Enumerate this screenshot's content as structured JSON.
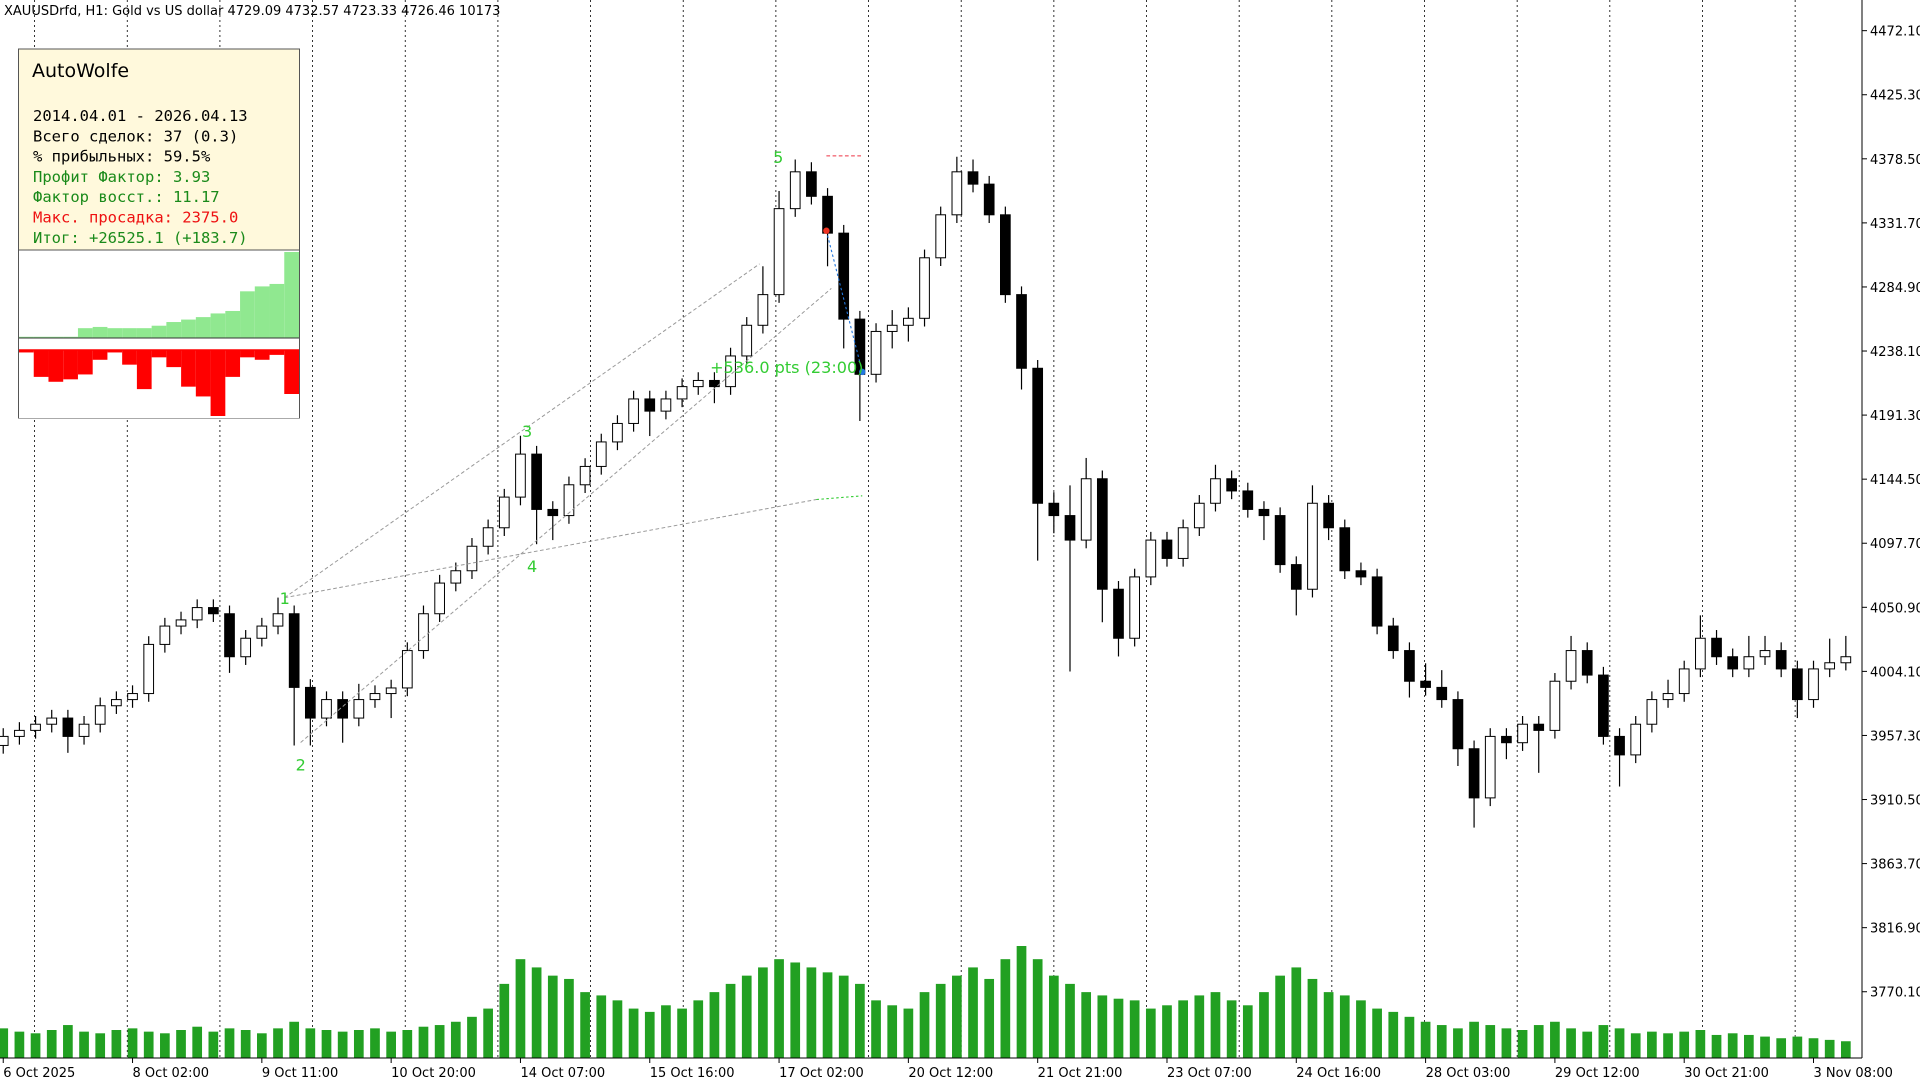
{
  "header": {
    "symbol_line": "XAUUSDrfd, H1:  Gold vs US dollar  4729.09 4732.57 4723.33 4726.46  10173"
  },
  "panel": {
    "title": "AutoWolfe",
    "lines": [
      {
        "text": "2014.04.01 - 2026.04.13",
        "color": "#000000"
      },
      {
        "text": "Всего сделок: 37 (0.3)",
        "color": "#000000"
      },
      {
        "text": "% прибыльных: 59.5%",
        "color": "#000000"
      },
      {
        "text": "Профит Фактор: 3.93",
        "color": "#1a8a1a"
      },
      {
        "text": "Фактор восст.: 11.17",
        "color": "#1a8a1a"
      },
      {
        "text": "Макс. просадка: 2375.0",
        "color": "#ee1111"
      },
      {
        "text": "Итог: +26525.1 (+183.7)",
        "color": "#1a8a1a"
      }
    ],
    "equity": [
      1,
      1,
      1,
      1,
      8,
      9,
      8,
      8,
      8,
      10,
      13,
      15,
      17,
      20,
      22,
      38,
      42,
      44,
      70
    ],
    "equity_color": "#90e890",
    "drawdown": [
      2,
      22,
      26,
      24,
      20,
      8,
      2,
      12,
      32,
      6,
      14,
      30,
      38,
      54,
      22,
      6,
      8,
      4,
      36
    ],
    "drawdown_color": "#ff0000"
  },
  "overlay": {
    "wolfe_labels": [
      "1",
      "2",
      "3",
      "4",
      "5"
    ],
    "pts_label": "+536.0 pts (23:00)",
    "color": "#33cc33"
  },
  "chart_data": {
    "type": "candlestick",
    "open": [
      3950.0,
      3956.6,
      3961.0,
      3965.5,
      3970.0,
      3956.6,
      3965.5,
      3979.0,
      3983.5,
      3987.9,
      4023.8,
      4037.2,
      4041.7,
      4050.7,
      4046.2,
      4014.8,
      4028.3,
      4037.2,
      4046.2,
      3992.4,
      3970.0,
      3983.5,
      3970.0,
      3983.5,
      3987.9,
      3992.0,
      4019.3,
      4046.2,
      4068.6,
      4077.6,
      4095.5,
      4109.0,
      4131.4,
      4162.8,
      4122.4,
      4117.9,
      4140.4,
      4153.8,
      4171.7,
      4185.2,
      4203.1,
      4194.2,
      4203.1,
      4212.1,
      4216.6,
      4212.1,
      4234.5,
      4256.9,
      4279.3,
      4342.1,
      4369.0,
      4351.1,
      4324.2,
      4261.4,
      4221.1,
      4252.4,
      4256.9,
      4262.0,
      4306.2,
      4337.6,
      4369.0,
      4360.0,
      4337.6,
      4279.3,
      4225.5,
      4126.9,
      4117.9,
      4100.0,
      4144.8,
      4064.1,
      4028.3,
      4073.1,
      4100.0,
      4086.6,
      4109.0,
      4126.9,
      4144.8,
      4135.9,
      4122.4,
      4117.9,
      4082.1,
      4064.1,
      4126.9,
      4109.0,
      4077.6,
      4073.1,
      4037.2,
      4019.3,
      3996.9,
      3992.4,
      3983.5,
      3947.6,
      3911.7,
      3956.6,
      3952.0,
      3965.5,
      3961.0,
      3996.9,
      4019.3,
      4001.4,
      3956.6,
      3943.1,
      3965.5,
      3983.5,
      3987.9,
      4005.9,
      4028.3,
      4014.8,
      4005.9,
      4014.8,
      4019.3,
      4005.9,
      3983.5,
      4005.9,
      4010.4
    ],
    "high": [
      3962.6,
      3967.0,
      3971.5,
      3976.0,
      3976.0,
      3971.5,
      3985.0,
      3989.5,
      3993.9,
      4029.8,
      4043.2,
      4047.7,
      4056.7,
      4056.7,
      4052.2,
      4034.3,
      4043.2,
      4058.0,
      4052.2,
      3998.4,
      3989.5,
      3989.5,
      3995.0,
      3993.9,
      3998.0,
      4025.3,
      4052.2,
      4074.6,
      4083.6,
      4101.5,
      4115.0,
      4137.4,
      4176.2,
      4168.8,
      4128.4,
      4146.4,
      4159.8,
      4177.7,
      4191.2,
      4209.1,
      4209.1,
      4209.1,
      4218.1,
      4222.6,
      4222.6,
      4240.5,
      4262.9,
      4300.0,
      4355.0,
      4378.0,
      4376.0,
      4357.1,
      4330.2,
      4267.4,
      4258.4,
      4268.0,
      4270.0,
      4312.2,
      4343.6,
      4380.0,
      4378.0,
      4366.0,
      4343.6,
      4285.3,
      4231.5,
      4135.0,
      4140.0,
      4160.0,
      4150.8,
      4070.1,
      4079.1,
      4106.0,
      4106.0,
      4115.0,
      4132.9,
      4155.0,
      4150.8,
      4141.9,
      4128.4,
      4123.9,
      4088.1,
      4140.0,
      4132.9,
      4115.0,
      4083.6,
      4079.1,
      4043.2,
      4025.3,
      4010.0,
      4005.0,
      3989.5,
      3953.6,
      3962.6,
      3962.6,
      3971.5,
      3971.5,
      4002.9,
      4030.0,
      4025.3,
      4007.4,
      3962.6,
      3971.5,
      3989.5,
      3998.0,
      4011.9,
      4045.0,
      4034.3,
      4020.8,
      4030.0,
      4030.0,
      4025.3,
      4011.9,
      4011.9,
      4028.0,
      4030.0
    ],
    "low": [
      3944.0,
      3950.6,
      3955.0,
      3959.5,
      3944.6,
      3950.6,
      3959.5,
      3973.0,
      3977.5,
      3981.9,
      4017.8,
      4031.2,
      4035.7,
      4040.2,
      4003.0,
      4008.8,
      4022.3,
      4031.2,
      3950.0,
      3950.0,
      3964.0,
      3952.0,
      3964.0,
      3977.5,
      3970.0,
      3986.0,
      4013.3,
      4040.2,
      4062.6,
      4071.6,
      4089.5,
      4103.0,
      4125.4,
      4097.0,
      4100.0,
      4111.9,
      4134.4,
      4147.8,
      4165.7,
      4179.2,
      4176.0,
      4188.2,
      4197.1,
      4206.1,
      4200.0,
      4206.1,
      4228.5,
      4250.9,
      4273.3,
      4336.1,
      4345.1,
      4300.0,
      4240.0,
      4187.0,
      4215.1,
      4240.0,
      4245.0,
      4256.0,
      4300.2,
      4331.6,
      4354.0,
      4331.6,
      4273.3,
      4210.0,
      4085.0,
      4105.0,
      4004.0,
      4094.0,
      4040.0,
      4015.0,
      4022.3,
      4067.1,
      4080.6,
      4080.6,
      4103.0,
      4120.9,
      4129.9,
      4116.4,
      4100.0,
      4076.1,
      4045.0,
      4058.1,
      4100.0,
      4071.6,
      4067.1,
      4031.2,
      4013.3,
      3985.0,
      3986.4,
      3977.5,
      3935.0,
      3890.0,
      3905.7,
      3940.0,
      3946.0,
      3930.0,
      3955.0,
      3990.9,
      3995.4,
      3950.6,
      3920.0,
      3937.1,
      3959.5,
      3977.5,
      3981.9,
      3999.9,
      4008.8,
      3999.9,
      3999.9,
      4008.8,
      3999.9,
      3970.0,
      3977.5,
      3999.9,
      4004.8
    ],
    "close": [
      3956.6,
      3961.0,
      3965.5,
      3970.0,
      3956.6,
      3965.5,
      3979.0,
      3983.5,
      3987.9,
      4023.8,
      4037.2,
      4041.7,
      4050.7,
      4046.2,
      4014.8,
      4028.3,
      4037.2,
      4046.2,
      3992.4,
      3970.0,
      3983.5,
      3970.0,
      3983.5,
      3987.9,
      3992.0,
      4019.3,
      4046.2,
      4068.6,
      4077.6,
      4095.5,
      4109.0,
      4131.4,
      4162.8,
      4122.4,
      4117.9,
      4140.4,
      4153.8,
      4171.7,
      4185.2,
      4203.1,
      4194.2,
      4203.1,
      4212.1,
      4216.6,
      4212.1,
      4234.5,
      4256.9,
      4279.3,
      4342.1,
      4369.0,
      4351.1,
      4324.2,
      4261.4,
      4221.1,
      4252.4,
      4256.9,
      4262.0,
      4306.2,
      4337.6,
      4369.0,
      4360.0,
      4337.6,
      4279.3,
      4225.5,
      4126.9,
      4117.9,
      4100.0,
      4144.8,
      4064.1,
      4028.3,
      4073.1,
      4100.0,
      4086.6,
      4109.0,
      4126.9,
      4144.8,
      4135.9,
      4122.4,
      4117.9,
      4082.1,
      4064.1,
      4126.9,
      4109.0,
      4077.6,
      4073.1,
      4037.2,
      4019.3,
      3996.9,
      3992.4,
      3983.5,
      3947.6,
      3911.7,
      3956.6,
      3952.0,
      3965.5,
      3961.0,
      3996.9,
      4019.3,
      4001.4,
      3956.6,
      3943.1,
      3965.5,
      3983.5,
      3987.9,
      4005.9,
      4028.3,
      4014.8,
      4005.9,
      4014.8,
      4019.3,
      4005.9,
      3983.5,
      4005.9,
      4010.4,
      4014.8
    ],
    "volume": [
      18000,
      16000,
      15000,
      17000,
      20000,
      16000,
      15000,
      17000,
      18000,
      16000,
      15000,
      17000,
      19000,
      16000,
      18000,
      17000,
      15000,
      18000,
      22000,
      18000,
      17000,
      16000,
      17000,
      18000,
      16000,
      17000,
      19000,
      20000,
      22000,
      25000,
      30000,
      45000,
      60000,
      55000,
      50000,
      48000,
      40000,
      38000,
      35000,
      30000,
      28000,
      32000,
      30000,
      35000,
      40000,
      45000,
      50000,
      55000,
      60000,
      58000,
      55000,
      52000,
      50000,
      45000,
      35000,
      32000,
      30000,
      40000,
      45000,
      50000,
      55000,
      48000,
      60000,
      68000,
      60000,
      50000,
      45000,
      40000,
      38000,
      36000,
      35000,
      30000,
      32000,
      35000,
      38000,
      40000,
      35000,
      32000,
      40000,
      50000,
      55000,
      48000,
      40000,
      38000,
      35000,
      30000,
      28000,
      25000,
      22000,
      20000,
      18000,
      22000,
      20000,
      18000,
      17000,
      20000,
      22000,
      18000,
      16000,
      20000,
      18000,
      15000,
      16000,
      15000,
      16000,
      17000,
      14000,
      15000,
      14000,
      13000,
      12000,
      13000,
      12000,
      11000,
      10173
    ],
    "colors": {
      "up": "#ffffff",
      "down": "#000000",
      "edge": "#000000",
      "volume": "#22a022"
    },
    "xlim": [
      -0.2,
      115.0
    ],
    "xticks": [
      {
        "value": 0,
        "label": "6 Oct 2025"
      },
      {
        "value": 8,
        "label": "8 Oct 02:00"
      },
      {
        "value": 16,
        "label": "9 Oct 11:00"
      },
      {
        "value": 24,
        "label": "10 Oct 20:00"
      },
      {
        "value": 32,
        "label": "14 Oct 07:00"
      },
      {
        "value": 40,
        "label": "15 Oct 16:00"
      },
      {
        "value": 48,
        "label": "17 Oct 02:00"
      },
      {
        "value": 56,
        "label": "20 Oct 12:00"
      },
      {
        "value": 64,
        "label": "21 Oct 21:00"
      },
      {
        "value": 72,
        "label": "23 Oct 07:00"
      },
      {
        "value": 80,
        "label": "24 Oct 16:00"
      },
      {
        "value": 88,
        "label": "28 Oct 03:00"
      },
      {
        "value": 96,
        "label": "29 Oct 12:00"
      },
      {
        "value": 104,
        "label": "30 Oct 21:00"
      },
      {
        "value": 112,
        "label": "3 Nov 08:00"
      }
    ],
    "ylim": [
      3721.7,
      4494.5
    ],
    "yticks": [
      {
        "value": 4472.1,
        "label": "4472.10"
      },
      {
        "value": 4425.3,
        "label": "4425.30"
      },
      {
        "value": 4378.5,
        "label": "4378.50"
      },
      {
        "value": 4331.7,
        "label": "4331.70"
      },
      {
        "value": 4284.9,
        "label": "4284.90"
      },
      {
        "value": 4238.1,
        "label": "4238.10"
      },
      {
        "value": 4191.3,
        "label": "4191.30"
      },
      {
        "value": 4144.5,
        "label": "4144.50"
      },
      {
        "value": 4097.7,
        "label": "4097.70"
      },
      {
        "value": 4050.9,
        "label": "4050.90"
      },
      {
        "value": 4004.1,
        "label": "4004.10"
      },
      {
        "value": 3957.3,
        "label": "3957.30"
      },
      {
        "value": 3910.5,
        "label": "3910.50"
      },
      {
        "value": 3863.7,
        "label": "3863.70"
      },
      {
        "value": 3816.9,
        "label": "3816.90"
      },
      {
        "value": 3770.1,
        "label": "3770.10"
      }
    ]
  }
}
